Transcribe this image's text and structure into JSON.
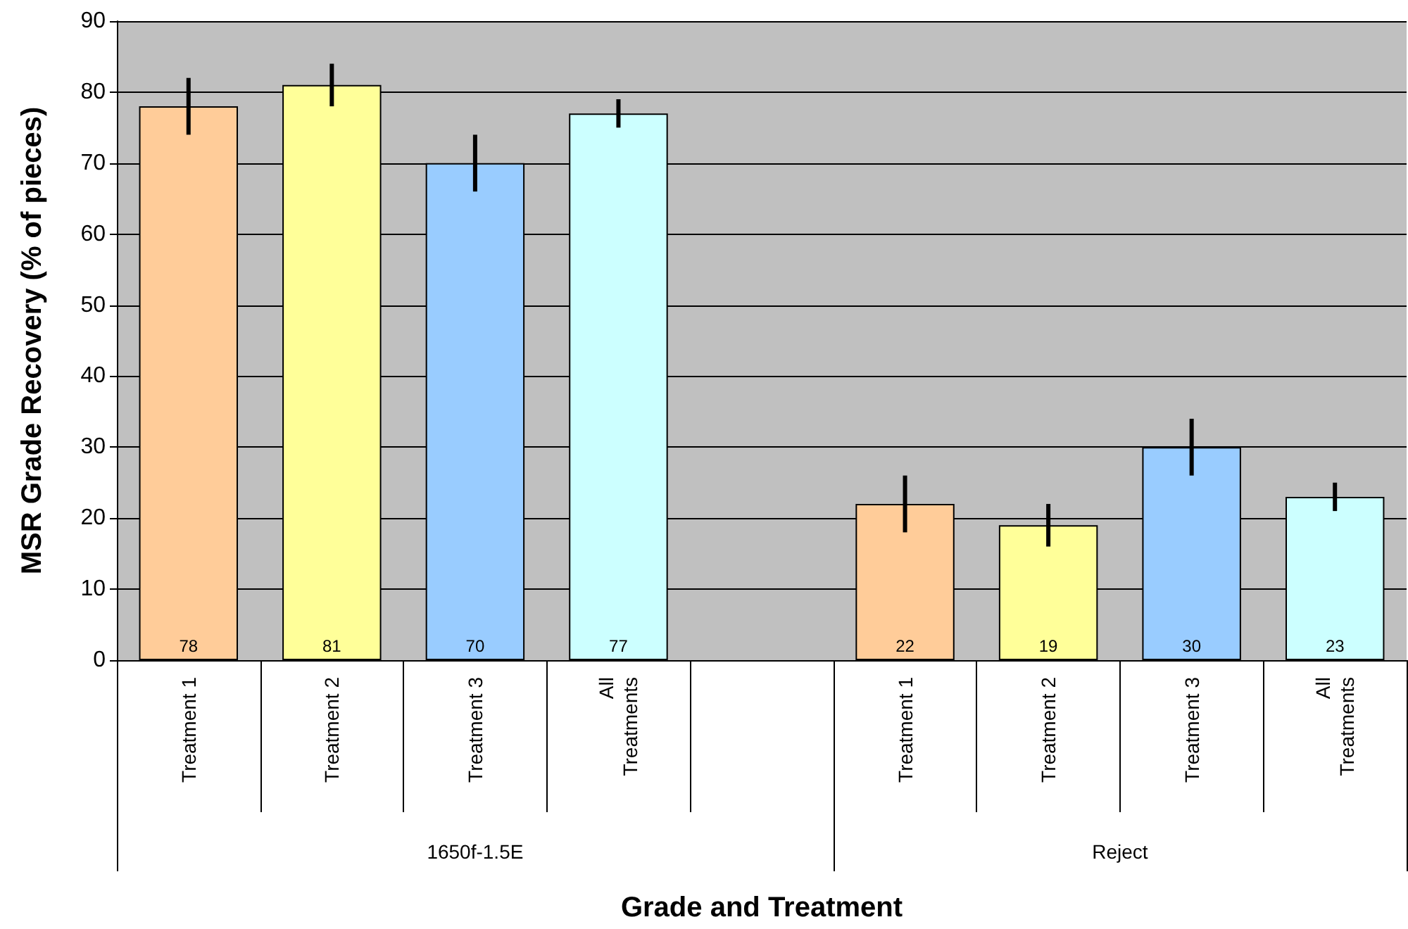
{
  "chart_data": {
    "type": "bar",
    "xlabel": "Grade and Treatment",
    "ylabel": "MSR Grade Recovery (% of pieces)",
    "categories": [
      "Treatment 1",
      "Treatment 2",
      "Treatment 3",
      "All Treatments",
      null,
      "Treatment 1",
      "Treatment 2",
      "Treatment 3",
      "All Treatments"
    ],
    "values": [
      78,
      81,
      70,
      77,
      null,
      22,
      19,
      30,
      23
    ],
    "errors": [
      4,
      3,
      4,
      2,
      null,
      4,
      3,
      4,
      2
    ],
    "colors": [
      "#ffcc99",
      "#ffff99",
      "#99ccff",
      "#ccffff",
      null,
      "#ffcc99",
      "#ffff99",
      "#99ccff",
      "#ccffff"
    ],
    "annotations": [
      "1650f-1.5E",
      "Reject"
    ],
    "ylim": [
      0,
      90
    ],
    "yticks": [
      0,
      10,
      20,
      30,
      40,
      50,
      60,
      70,
      80,
      90
    ],
    "grid": "y",
    "data_labels": true
  }
}
